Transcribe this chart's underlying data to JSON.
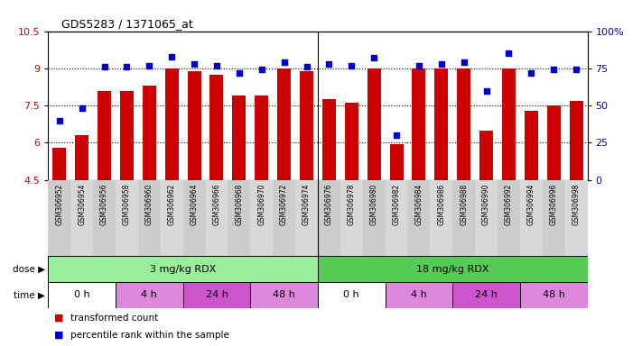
{
  "title": "GDS5283 / 1371065_at",
  "samples": [
    "GSM306952",
    "GSM306954",
    "GSM306956",
    "GSM306958",
    "GSM306960",
    "GSM306962",
    "GSM306964",
    "GSM306966",
    "GSM306968",
    "GSM306970",
    "GSM306972",
    "GSM306974",
    "GSM306976",
    "GSM306978",
    "GSM306980",
    "GSM306982",
    "GSM306984",
    "GSM306986",
    "GSM306988",
    "GSM306990",
    "GSM306992",
    "GSM306994",
    "GSM306996",
    "GSM306998"
  ],
  "bar_values": [
    5.8,
    6.3,
    8.1,
    8.1,
    8.3,
    9.0,
    8.9,
    8.75,
    7.9,
    7.9,
    9.0,
    8.9,
    7.75,
    7.6,
    9.0,
    5.95,
    9.0,
    9.0,
    9.0,
    6.5,
    9.0,
    7.3,
    7.5,
    7.7
  ],
  "percentile_values": [
    40,
    48,
    76,
    76,
    77,
    83,
    78,
    77,
    72,
    74,
    79,
    76,
    78,
    77,
    82,
    30,
    77,
    78,
    79,
    60,
    85,
    72,
    74,
    74
  ],
  "ylim_left": [
    4.5,
    10.5
  ],
  "ylim_right": [
    0,
    100
  ],
  "yticks_left": [
    4.5,
    6.0,
    7.5,
    9.0,
    10.5
  ],
  "yticks_right": [
    0,
    25,
    50,
    75,
    100
  ],
  "bar_color": "#cc0000",
  "dot_color": "#0000cc",
  "bar_width": 0.6,
  "dose_groups": [
    {
      "label": "3 mg/kg RDX",
      "start": 0,
      "end": 11,
      "color": "#99ee99"
    },
    {
      "label": "18 mg/kg RDX",
      "start": 12,
      "end": 23,
      "color": "#55cc55"
    }
  ],
  "time_groups": [
    {
      "label": "0 h",
      "start": 0,
      "end": 2
    },
    {
      "label": "4 h",
      "start": 3,
      "end": 5
    },
    {
      "label": "24 h",
      "start": 6,
      "end": 8
    },
    {
      "label": "48 h",
      "start": 9,
      "end": 11
    },
    {
      "label": "0 h",
      "start": 12,
      "end": 14
    },
    {
      "label": "4 h",
      "start": 15,
      "end": 17
    },
    {
      "label": "24 h",
      "start": 18,
      "end": 20
    },
    {
      "label": "48 h",
      "start": 21,
      "end": 23
    }
  ],
  "time_bg_colors": [
    "#ffffff",
    "#dd88dd",
    "#cc55cc",
    "#dd88dd",
    "#ffffff",
    "#dd88dd",
    "#cc55cc",
    "#dd88dd"
  ],
  "legend": [
    {
      "label": "transformed count",
      "color": "#cc0000"
    },
    {
      "label": "percentile rank within the sample",
      "color": "#0000cc"
    }
  ],
  "background_color": "#ffffff",
  "tick_label_color_left": "#cc0000",
  "tick_label_color_right": "#0000cc",
  "sample_area_color": "#d8d8d8"
}
